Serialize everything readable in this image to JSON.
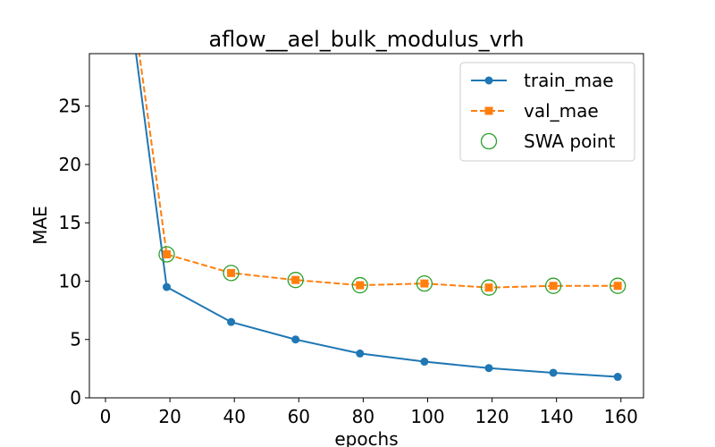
{
  "chart_data": {
    "type": "line",
    "title": "aflow__ael_bulk_modulus_vrh",
    "xlabel": "epochs",
    "ylabel": "MAE",
    "xlim": [
      -5,
      167
    ],
    "ylim": [
      0,
      29.5
    ],
    "xticks": [
      0,
      20,
      40,
      60,
      80,
      100,
      120,
      140,
      160
    ],
    "yticks": [
      0,
      5,
      10,
      15,
      20,
      25
    ],
    "grid": false,
    "legend_position": "top-right",
    "series": [
      {
        "name": "train_mae",
        "color": "#1f77b4",
        "line_style": "solid",
        "marker": "circle",
        "x": [
          9,
          19,
          39,
          59,
          79,
          99,
          119,
          139,
          159
        ],
        "y": [
          30.5,
          9.5,
          6.5,
          5.0,
          3.8,
          3.1,
          2.55,
          2.15,
          1.8
        ],
        "marker_from_index": 1
      },
      {
        "name": "val_mae",
        "color": "#ff7f0e",
        "line_style": "dashed",
        "marker": "square",
        "x": [
          10,
          19,
          39,
          59,
          79,
          99,
          119,
          139,
          159
        ],
        "y": [
          30.5,
          12.3,
          10.7,
          10.1,
          9.65,
          9.8,
          9.45,
          9.6,
          9.6
        ],
        "marker_from_index": 1
      },
      {
        "name": "SWA point",
        "color": "#2ca02c",
        "marker": "open-circle",
        "x": [
          19,
          39,
          59,
          79,
          99,
          119,
          139,
          159
        ],
        "y": [
          12.3,
          10.7,
          10.1,
          9.65,
          9.8,
          9.45,
          9.6,
          9.6
        ]
      }
    ]
  }
}
